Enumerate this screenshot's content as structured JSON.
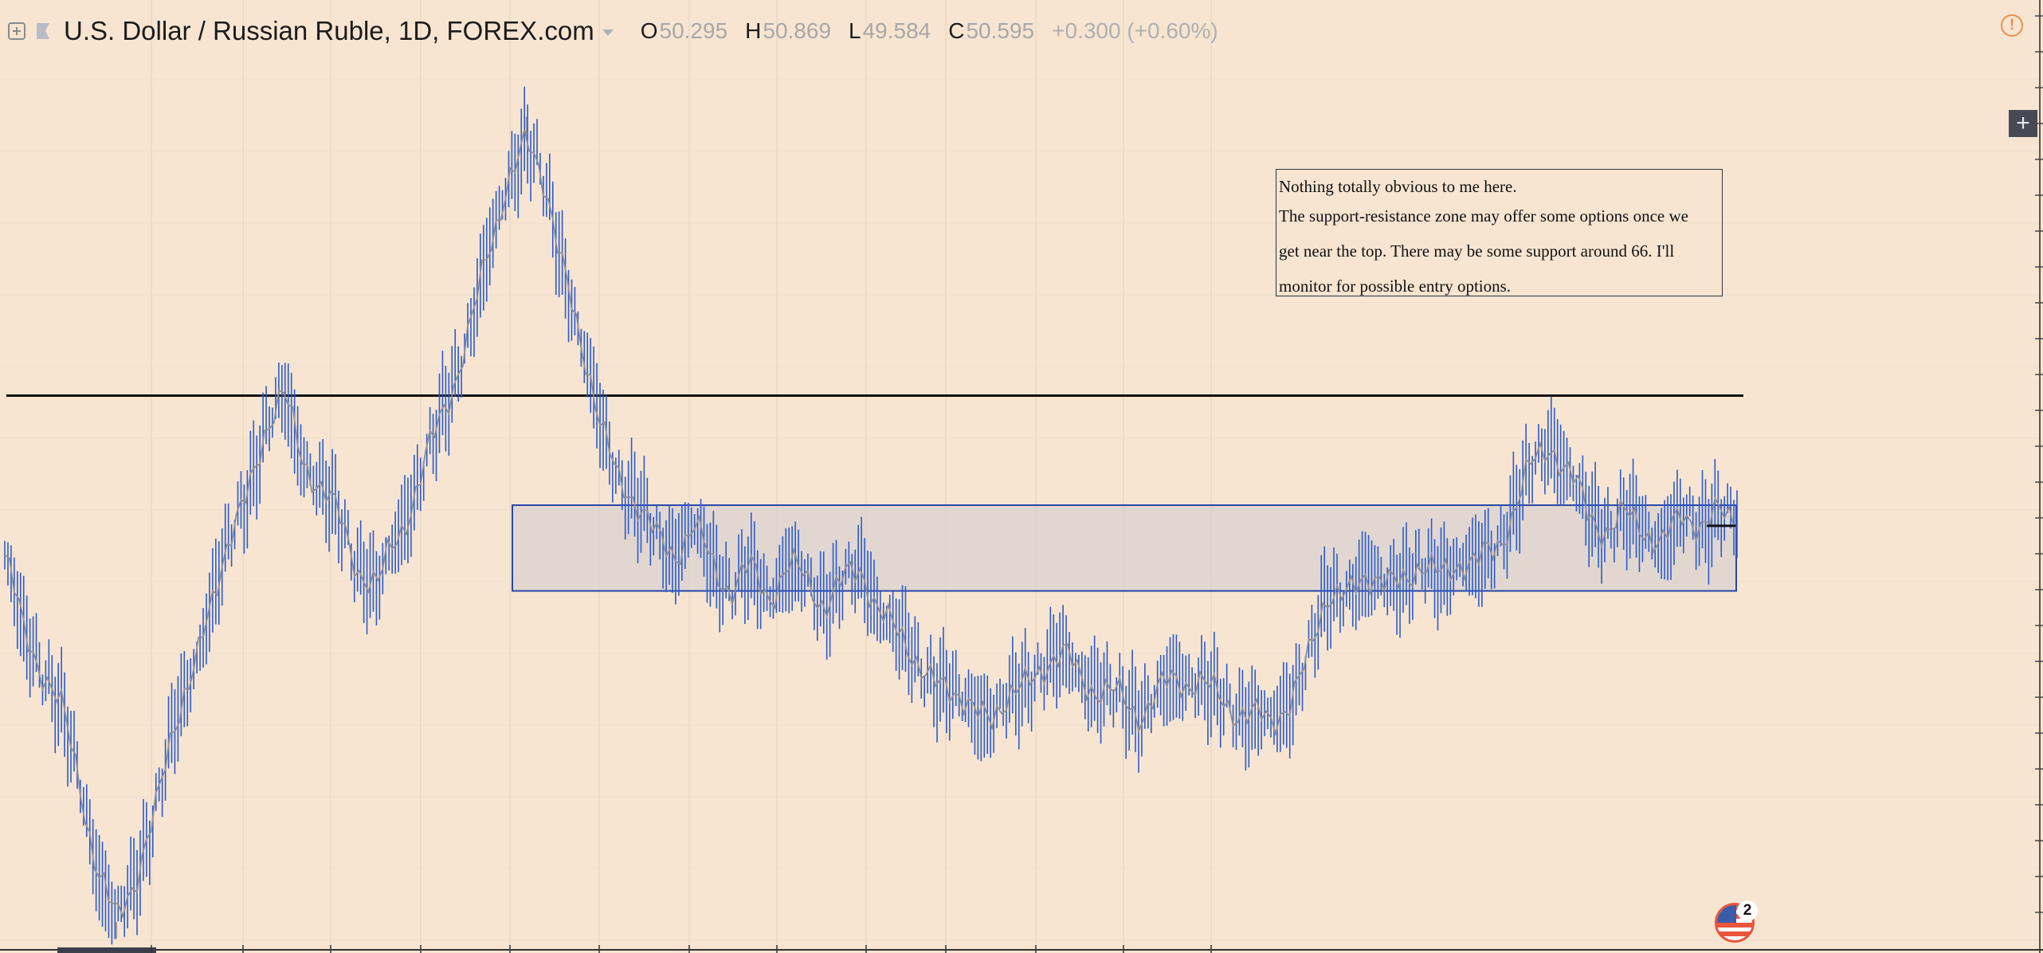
{
  "header": {
    "symbol_title": "U.S. Dollar / Russian Ruble, 1D, FOREX.com",
    "open_label": "O",
    "open_value": "50.295",
    "high_label": "H",
    "high_value": "50.869",
    "low_label": "L",
    "low_value": "49.584",
    "close_label": "C",
    "close_value": "50.595",
    "change": "+0.300 (+0.60%)"
  },
  "note": {
    "lines": [
      "Nothing totally obvious to me here.",
      "The support-resistance zone may offer some options once we",
      "get near the top. There may be some support around 66.  I'll",
      "monitor for possible entry options."
    ]
  },
  "badge": {
    "count": "2"
  },
  "icons": {
    "expand": "expand-plus-icon",
    "flag": "flag-icon",
    "caret": "caret-down-icon",
    "warning": "warning-circle-icon",
    "plus": "plus-icon",
    "badge": "us-flag-icon"
  },
  "colors": {
    "background": "#f7e5d1",
    "candle": "#2a5bd0",
    "average_line": "#8e8e96",
    "zone_fill": "#d9d2cf",
    "zone_border": "#2a47a8",
    "resistance_line": "#111111",
    "warning": "#f0904a"
  },
  "chart_data": {
    "type": "line",
    "series": [
      {
        "values": [
          63.5,
          60.2,
          58.9,
          57.1,
          54.0,
          50.3,
          48.1,
          49.8,
          52.6,
          56.0,
          58.4,
          61.3,
          63.9,
          66.1,
          68.8,
          70.2,
          67.6,
          66.3,
          64.9,
          63.1,
          62.0,
          64.2,
          66.1,
          68.2,
          70.6,
          73.1,
          76.2,
          79.3,
          80.9,
          79.0,
          75.6,
          72.1,
          69.0,
          66.7,
          65.5,
          64.3,
          63.6,
          64.6,
          63.2,
          62.1,
          62.8,
          61.9,
          63.0,
          62.4,
          61.6,
          62.3,
          62.9,
          61.2,
          60.1,
          59.0,
          58.2,
          57.6,
          57.1,
          56.7,
          57.5,
          58.3,
          59.0,
          59.2,
          58.3,
          57.7,
          57.4,
          57.0,
          57.6,
          58.4,
          58.3,
          57.5,
          57.1,
          56.8,
          56.4,
          57.4,
          59.3,
          61.7,
          62.0,
          62.5,
          62.3,
          62.6,
          62.9,
          62.7,
          63.3,
          63.0,
          63.8,
          65.4,
          67.1,
          68.4,
          66.8,
          65.2,
          64.7,
          65.1,
          64.6,
          64.1,
          65.1,
          64.7,
          65.5,
          64.8
        ],
        "high": 81.9,
        "low": 47.4
      }
    ],
    "resistance_line": 70.2,
    "support_resistance_zone": [
      62.0,
      65.6
    ],
    "ylim": [
      47.0,
      84.8
    ],
    "grid": true
  }
}
